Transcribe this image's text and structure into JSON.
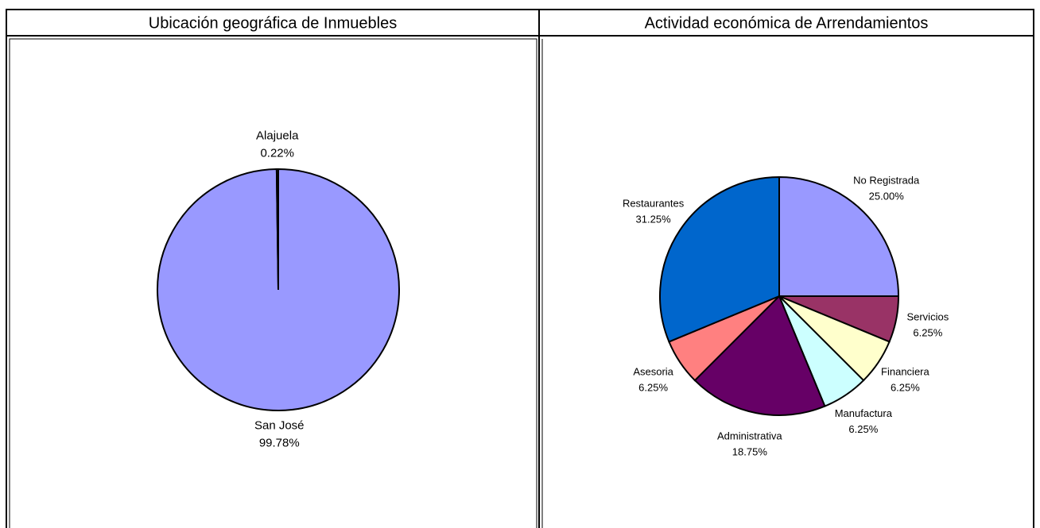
{
  "chart_data": [
    {
      "type": "pie",
      "title": "Ubicación geográfica de Inmuebles",
      "categories": [
        "San José",
        "Alajuela"
      ],
      "values": [
        99.78,
        0.22
      ],
      "value_labels": [
        "99.78%",
        "0.22%"
      ],
      "colors": [
        "#9999ff",
        "#9999ff"
      ]
    },
    {
      "type": "pie",
      "title": "Actividad económica de Arrendamientos",
      "categories": [
        "No Registrada",
        "Servicios",
        "Financiera",
        "Manufactura",
        "Administrativa",
        "Asesoria",
        "Restaurantes"
      ],
      "values": [
        25.0,
        6.25,
        6.25,
        6.25,
        18.75,
        6.25,
        31.25
      ],
      "value_labels": [
        "25.00%",
        "6.25%",
        "6.25%",
        "6.25%",
        "18.75%",
        "6.25%",
        "31.25%"
      ],
      "colors": [
        "#9999ff",
        "#993366",
        "#ffffcc",
        "#ccffff",
        "#660066",
        "#ff8080",
        "#0066cc"
      ]
    }
  ]
}
